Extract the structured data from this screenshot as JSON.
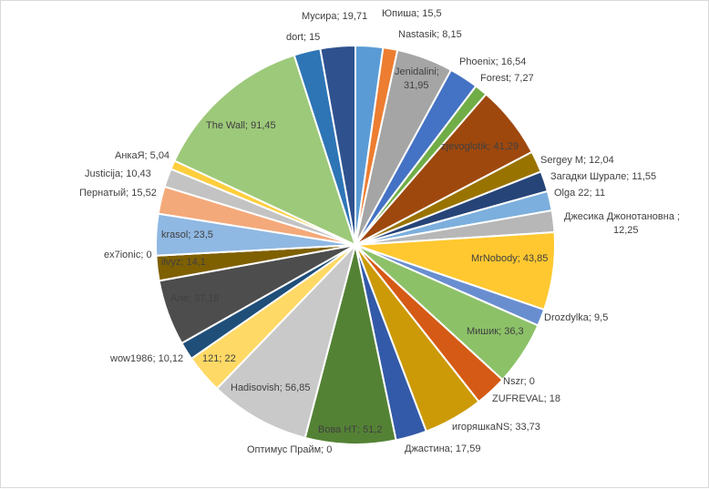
{
  "chart_data": {
    "type": "pie",
    "title": "",
    "legend": "none",
    "separator": "; ",
    "slices": [
      {
        "name": "Юпиша",
        "value": 15.5,
        "label": "15,5",
        "color": "#5b9bd5"
      },
      {
        "name": "Nastasik",
        "value": 8.15,
        "label": "8,15",
        "color": "#ed7d31"
      },
      {
        "name": "Jenidalini",
        "value": 31.95,
        "label": "31,95",
        "color": "#a5a5a5"
      },
      {
        "name": "Phoenix",
        "value": 16.54,
        "label": "16,54",
        "color": "#4472c4"
      },
      {
        "name": "Forest",
        "value": 7.27,
        "label": "7,27",
        "color": "#70ad47"
      },
      {
        "name": "zjevoglotik",
        "value": 41.29,
        "label": "41,29",
        "color": "#9e480e"
      },
      {
        "name": "Sergey M",
        "value": 12.04,
        "label": "12,04",
        "color": "#997300"
      },
      {
        "name": "Загадки Шурале",
        "value": 11.55,
        "label": "11,55",
        "color": "#264478"
      },
      {
        "name": "Olga 22",
        "value": 11,
        "label": "11",
        "color": "#7cafdd"
      },
      {
        "name": "Джесика Джонотановна",
        "value": 12.25,
        "label": "12,25",
        "color": "#b7b7b7"
      },
      {
        "name": "MrNobody",
        "value": 43.85,
        "label": "43,85",
        "color": "#ffc830"
      },
      {
        "name": "Drozdylka",
        "value": 9.5,
        "label": "9,5",
        "color": "#698ed0"
      },
      {
        "name": "Мишик",
        "value": 36.3,
        "label": "36,3",
        "color": "#8cc168"
      },
      {
        "name": "Nszr",
        "value": 0,
        "label": "0",
        "color": "#c65911"
      },
      {
        "name": "ZUFREVAL",
        "value": 18,
        "label": "18",
        "color": "#d55a15"
      },
      {
        "name": "игоряшкаNS",
        "value": 33.73,
        "label": "33,73",
        "color": "#cc9a06"
      },
      {
        "name": "Джастина",
        "value": 17.59,
        "label": "17,59",
        "color": "#335aa8"
      },
      {
        "name": "Вова НТ",
        "value": 51.2,
        "label": "51,2",
        "color": "#548235"
      },
      {
        "name": "Оптимус Прайм",
        "value": 0,
        "label": "0",
        "color": "#5e9ae0"
      },
      {
        "name": "Hadisovish",
        "value": 56.85,
        "label": "56,85",
        "color": "#c9c9c9"
      },
      {
        "name": "121",
        "value": 22,
        "label": "22",
        "color": "#ffd966"
      },
      {
        "name": "wow1986",
        "value": 10.12,
        "label": "10,12",
        "color": "#1f4e79"
      },
      {
        "name": "Але",
        "value": 37.18,
        "label": "37,18",
        "color": "#4d4d4d"
      },
      {
        "name": "ilvyz",
        "value": 14.1,
        "label": "14,1",
        "color": "#7f6000"
      },
      {
        "name": "ex7ionic",
        "value": 0,
        "label": "0",
        "color": "#2f5597"
      },
      {
        "name": "krasol",
        "value": 23.5,
        "label": "23,5",
        "color": "#8fb8e3"
      },
      {
        "name": "Пернатый",
        "value": 15.52,
        "label": "15,52",
        "color": "#f4a97a"
      },
      {
        "name": "Justicija",
        "value": 10.43,
        "label": "10,43",
        "color": "#c3c3c3"
      },
      {
        "name": "АнкаЯ",
        "value": 5.04,
        "label": "5,04",
        "color": "#ffce3d"
      },
      {
        "name": "The Wall",
        "value": 91.45,
        "label": "91,45",
        "color": "#9dc97a"
      },
      {
        "name": "dort",
        "value": 15,
        "label": "15",
        "color": "#2e75b6"
      },
      {
        "name": "Мусира",
        "value": 19.71,
        "label": "19,71",
        "color": "#2f528f"
      }
    ]
  }
}
